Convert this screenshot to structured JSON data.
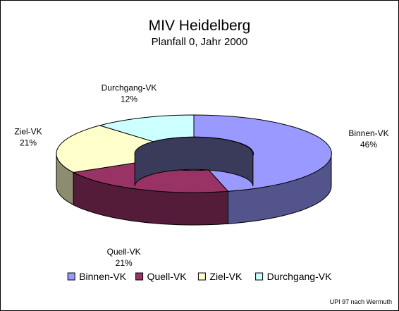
{
  "chart_data": {
    "type": "pie",
    "title": "MIV Heidelberg",
    "subtitle": "Planfall 0, Jahr 2000",
    "categories": [
      "Binnen-VK",
      "Quell-VK",
      "Ziel-VK",
      "Durchgang-VK"
    ],
    "values": [
      46,
      21,
      21,
      12
    ],
    "value_labels": [
      "46%",
      "21%",
      "21%",
      "12%"
    ],
    "colors": [
      "#9999ff",
      "#993366",
      "#ffffcc",
      "#ccffff"
    ],
    "legend_position": "bottom",
    "style": "3d-exploded-ring"
  },
  "footer": {
    "credit": "UPI 97 nach Wermuth"
  }
}
